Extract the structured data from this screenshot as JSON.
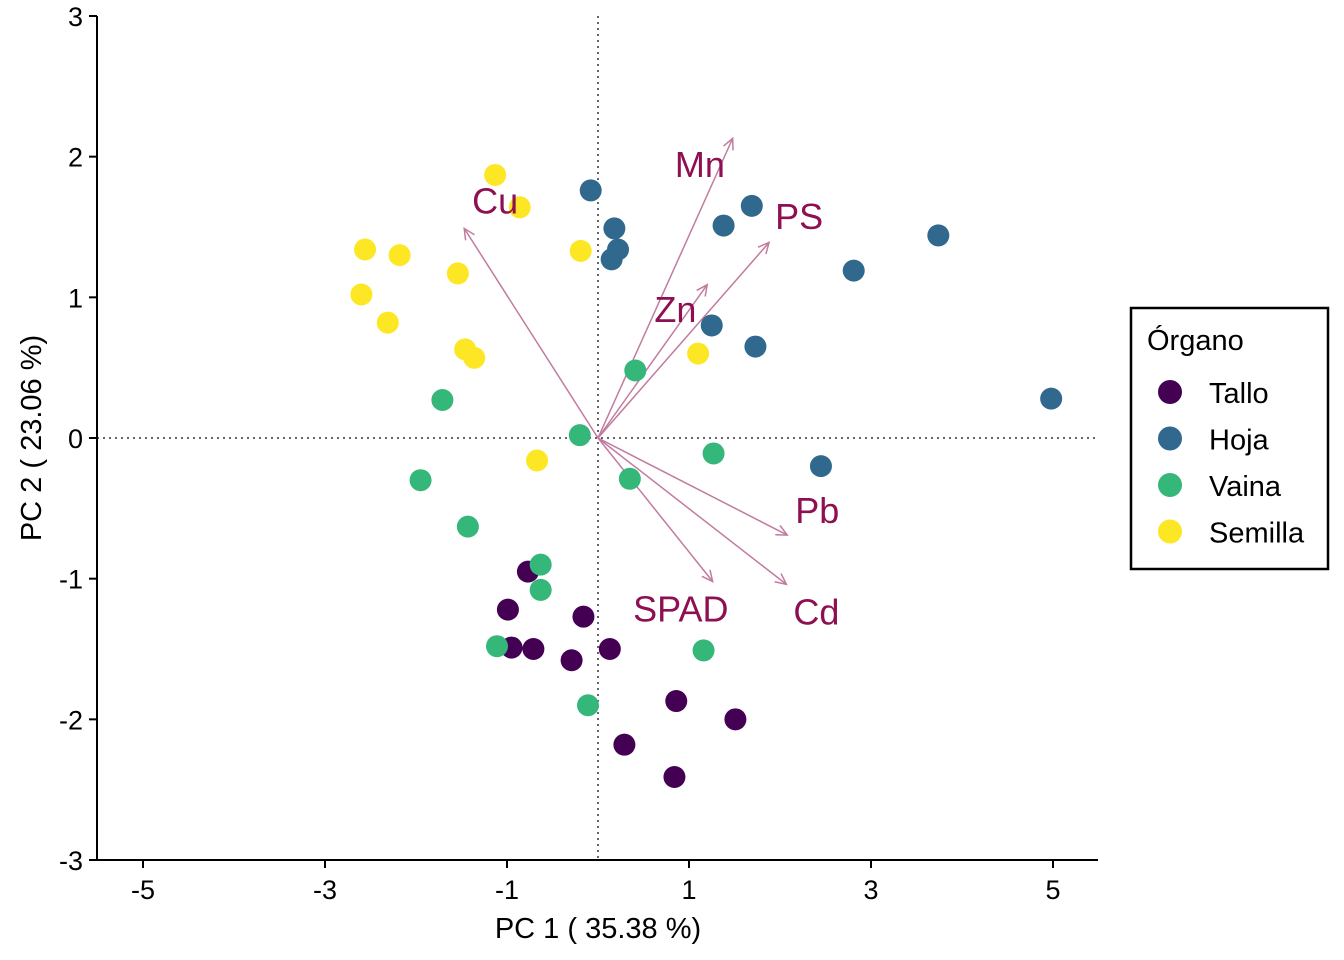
{
  "chart_data": {
    "type": "scatter",
    "subtype": "pca-biplot",
    "xlabel": "PC 1 ( 35.38 %)",
    "ylabel": "PC 2 ( 23.06 %)",
    "xlim": [
      -5.5,
      5.5
    ],
    "ylim": [
      -3,
      3
    ],
    "xticks": [
      -5,
      -3,
      -1,
      1,
      3,
      5
    ],
    "yticks": [
      -3,
      -2,
      -1,
      0,
      1,
      2,
      3
    ],
    "grid": false,
    "reference_lines": {
      "x": 0,
      "y": 0,
      "style": "dotted"
    },
    "legend": {
      "title": "Órgano",
      "placement": "right"
    },
    "series": [
      {
        "name": "Tallo",
        "color": "#440154",
        "points": [
          [
            -0.77,
            -0.95
          ],
          [
            -0.99,
            -1.22
          ],
          [
            -0.16,
            -1.27
          ],
          [
            -0.95,
            -1.49
          ],
          [
            -0.71,
            -1.5
          ],
          [
            -0.29,
            -1.58
          ],
          [
            0.13,
            -1.5
          ],
          [
            0.86,
            -1.87
          ],
          [
            1.51,
            -2.0
          ],
          [
            0.29,
            -2.18
          ],
          [
            0.84,
            -2.41
          ]
        ]
      },
      {
        "name": "Hoja",
        "color": "#31688E",
        "points": [
          [
            -0.08,
            1.76
          ],
          [
            0.18,
            1.49
          ],
          [
            0.22,
            1.34
          ],
          [
            0.15,
            1.27
          ],
          [
            1.69,
            1.65
          ],
          [
            1.38,
            1.51
          ],
          [
            3.74,
            1.44
          ],
          [
            2.81,
            1.19
          ],
          [
            1.25,
            0.8
          ],
          [
            1.73,
            0.65
          ],
          [
            4.98,
            0.28
          ],
          [
            2.45,
            -0.2
          ]
        ]
      },
      {
        "name": "Vaina",
        "color": "#35B779",
        "points": [
          [
            0.41,
            0.48
          ],
          [
            -1.71,
            0.27
          ],
          [
            -0.2,
            0.02
          ],
          [
            1.27,
            -0.11
          ],
          [
            -1.95,
            -0.3
          ],
          [
            0.35,
            -0.29
          ],
          [
            -1.43,
            -0.63
          ],
          [
            -0.63,
            -0.9
          ],
          [
            -0.63,
            -1.08
          ],
          [
            -1.11,
            -1.48
          ],
          [
            1.16,
            -1.51
          ],
          [
            -0.11,
            -1.9
          ]
        ]
      },
      {
        "name": "Semilla",
        "color": "#FDE725",
        "points": [
          [
            -1.13,
            1.87
          ],
          [
            -0.86,
            1.64
          ],
          [
            -2.56,
            1.34
          ],
          [
            -2.18,
            1.3
          ],
          [
            -0.19,
            1.33
          ],
          [
            -1.54,
            1.17
          ],
          [
            -2.6,
            1.02
          ],
          [
            -2.31,
            0.82
          ],
          [
            -1.46,
            0.63
          ],
          [
            -1.36,
            0.57
          ],
          [
            1.1,
            0.6
          ],
          [
            -0.67,
            -0.16
          ]
        ]
      }
    ],
    "loadings": [
      {
        "name": "Mn",
        "end": [
          1.48,
          2.13
        ],
        "label_at": [
          1.12,
          1.94
        ]
      },
      {
        "name": "PS",
        "end": [
          1.88,
          1.39
        ],
        "label_at": [
          2.21,
          1.57
        ]
      },
      {
        "name": "Cu",
        "end": [
          -1.47,
          1.49
        ],
        "label_at": [
          -1.13,
          1.68
        ]
      },
      {
        "name": "Zn",
        "end": [
          1.2,
          1.09
        ],
        "label_at": [
          0.85,
          0.91
        ]
      },
      {
        "name": "Pb",
        "end": [
          2.08,
          -0.69
        ],
        "label_at": [
          2.41,
          -0.52
        ]
      },
      {
        "name": "Cd",
        "end": [
          2.07,
          -1.04
        ],
        "label_at": [
          2.4,
          -1.24
        ]
      },
      {
        "name": "SPAD",
        "end": [
          1.26,
          -1.02
        ],
        "label_at": [
          0.91,
          -1.22
        ]
      }
    ],
    "arrow_color": "#C27BA0",
    "label_color": "#8E0F52"
  }
}
